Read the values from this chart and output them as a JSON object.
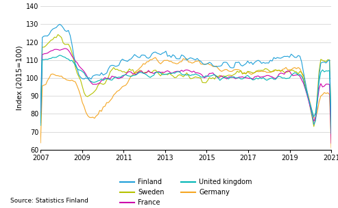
{
  "title": "",
  "ylabel": "Index (2015=100)",
  "ylim": [
    60,
    140
  ],
  "yticks": [
    60,
    70,
    80,
    90,
    100,
    110,
    120,
    130,
    140
  ],
  "xlim": [
    2007.0,
    2021.0
  ],
  "xticks": [
    2007,
    2009,
    2011,
    2013,
    2015,
    2017,
    2019,
    2021
  ],
  "source_text": "Source: Statistics Finland",
  "colors": {
    "Finland": "#1d9fd8",
    "Sweden": "#b5c200",
    "France": "#cc00aa",
    "United kingdom": "#00b5b5",
    "Germany": "#f5a623"
  },
  "background_color": "#ffffff",
  "grid_color": "#cccccc"
}
